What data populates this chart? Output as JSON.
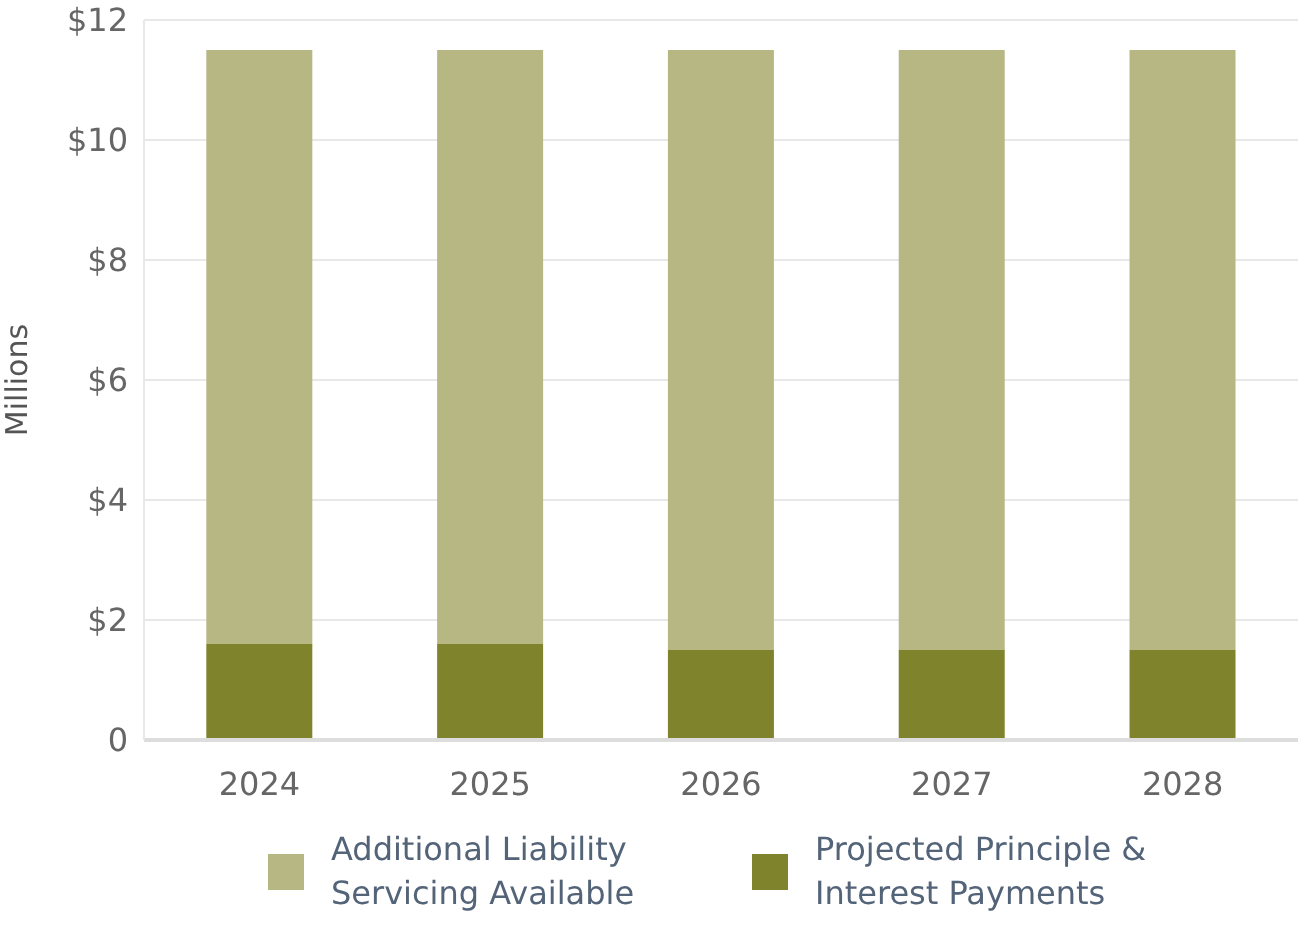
{
  "chart_data": {
    "type": "bar",
    "stacked": true,
    "ylabel": "Millions",
    "categories": [
      "2024",
      "2025",
      "2026",
      "2027",
      "2028"
    ],
    "series": [
      {
        "name": "Projected Principle & Interest Payments",
        "color": "#7f832b",
        "values": [
          1.6,
          1.6,
          1.5,
          1.5,
          1.5
        ]
      },
      {
        "name": "Additional Liability Servicing Available",
        "color": "#b7b784",
        "values": [
          9.9,
          9.9,
          10.0,
          10.0,
          10.0
        ]
      }
    ],
    "ylim": [
      0,
      12
    ],
    "yticks": [
      {
        "value": 0,
        "label": "0"
      },
      {
        "value": 2,
        "label": "$2"
      },
      {
        "value": 4,
        "label": "$4"
      },
      {
        "value": 6,
        "label": "$6"
      },
      {
        "value": 8,
        "label": "$8"
      },
      {
        "value": 10,
        "label": "$10"
      },
      {
        "value": 12,
        "label": "$12"
      }
    ],
    "grid": "y",
    "legend": "bottom"
  }
}
